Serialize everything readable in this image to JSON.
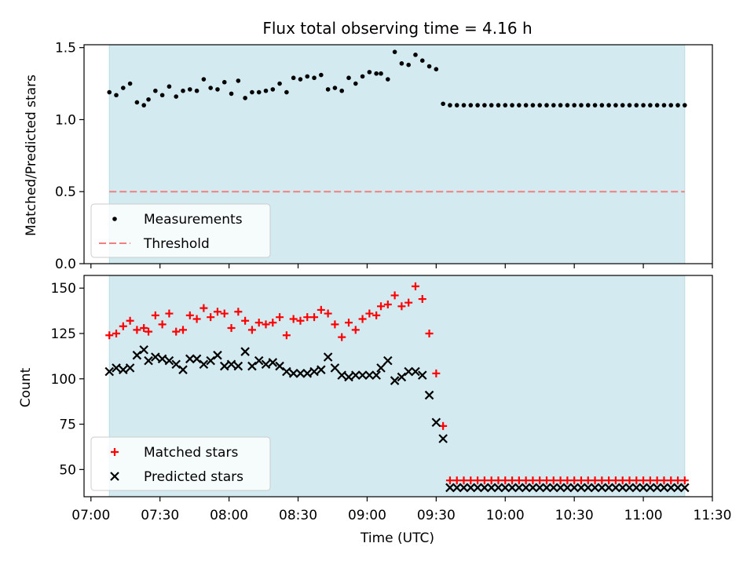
{
  "chart_data": [
    {
      "type": "scatter",
      "title": "Flux total observing time = 4.16 h",
      "xlabel": "",
      "ylabel": "Matched/Predicted stars",
      "xlim": [
        "06:57",
        "11:30"
      ],
      "ylim": [
        0,
        1.52
      ],
      "yticks": [
        0.0,
        0.5,
        1.0,
        1.5
      ],
      "ytick_labels": [
        "0.0",
        "0.5",
        "1.0",
        "1.5"
      ],
      "shaded_span": [
        "07:08",
        "11:18"
      ],
      "shade_color": "#d3eaf0",
      "threshold": {
        "name": "Threshold",
        "value": 0.5,
        "x": [
          "07:08",
          "11:18"
        ],
        "color": "#f08080"
      },
      "legend": {
        "position": "lower-left",
        "entries": [
          "Measurements",
          "Threshold"
        ]
      },
      "series": [
        {
          "name": "Measurements",
          "color": "#000000",
          "marker": "dot",
          "x": [
            "07:08",
            "07:11",
            "07:14",
            "07:17",
            "07:20",
            "07:23",
            "07:25",
            "07:28",
            "07:31",
            "07:34",
            "07:37",
            "07:40",
            "07:43",
            "07:46",
            "07:49",
            "07:52",
            "07:55",
            "07:58",
            "08:01",
            "08:04",
            "08:07",
            "08:10",
            "08:13",
            "08:16",
            "08:19",
            "08:22",
            "08:25",
            "08:28",
            "08:31",
            "08:34",
            "08:37",
            "08:40",
            "08:43",
            "08:46",
            "08:49",
            "08:52",
            "08:55",
            "08:58",
            "09:01",
            "09:04",
            "09:06",
            "09:09",
            "09:12",
            "09:15",
            "09:18",
            "09:21",
            "09:24",
            "09:27",
            "09:30",
            "09:33",
            "09:36",
            "09:39",
            "09:42",
            "09:45",
            "09:48",
            "09:51",
            "09:54",
            "09:57",
            "10:00",
            "10:03",
            "10:06",
            "10:09",
            "10:12",
            "10:15",
            "10:18",
            "10:21",
            "10:24",
            "10:27",
            "10:30",
            "10:33",
            "10:36",
            "10:39",
            "10:42",
            "10:45",
            "10:48",
            "10:51",
            "10:54",
            "10:57",
            "11:00",
            "11:03",
            "11:06",
            "11:09",
            "11:12",
            "11:15",
            "11:18"
          ],
          "y": [
            1.19,
            1.17,
            1.22,
            1.25,
            1.12,
            1.1,
            1.14,
            1.2,
            1.17,
            1.23,
            1.16,
            1.2,
            1.21,
            1.2,
            1.28,
            1.22,
            1.21,
            1.26,
            1.18,
            1.27,
            1.15,
            1.19,
            1.19,
            1.2,
            1.21,
            1.25,
            1.19,
            1.29,
            1.28,
            1.3,
            1.29,
            1.31,
            1.21,
            1.22,
            1.2,
            1.29,
            1.25,
            1.3,
            1.33,
            1.32,
            1.32,
            1.28,
            1.47,
            1.39,
            1.38,
            1.45,
            1.41,
            1.37,
            1.35,
            1.11,
            1.1,
            1.1,
            1.1,
            1.1,
            1.1,
            1.1,
            1.1,
            1.1,
            1.1,
            1.1,
            1.1,
            1.1,
            1.1,
            1.1,
            1.1,
            1.1,
            1.1,
            1.1,
            1.1,
            1.1,
            1.1,
            1.1,
            1.1,
            1.1,
            1.1,
            1.1,
            1.1,
            1.1,
            1.1,
            1.1,
            1.1,
            1.1,
            1.1,
            1.1,
            1.1
          ]
        }
      ]
    },
    {
      "type": "scatter",
      "title": "",
      "xlabel": "Time (UTC)",
      "ylabel": "Count",
      "xlim": [
        "06:57",
        "11:30"
      ],
      "ylim": [
        35,
        157
      ],
      "yticks": [
        50,
        75,
        100,
        125,
        150
      ],
      "ytick_labels": [
        "50",
        "75",
        "100",
        "125",
        "150"
      ],
      "xticks": [
        "07:00",
        "07:30",
        "08:00",
        "08:30",
        "09:00",
        "09:30",
        "10:00",
        "10:30",
        "11:00",
        "11:30"
      ],
      "xtick_labels": [
        "07:00",
        "07:30",
        "08:00",
        "08:30",
        "09:00",
        "09:30",
        "10:00",
        "10:30",
        "11:00",
        "11:30"
      ],
      "shaded_span": [
        "07:08",
        "11:18"
      ],
      "shade_color": "#d3eaf0",
      "legend": {
        "position": "lower-left",
        "entries": [
          "Matched stars",
          "Predicted stars"
        ]
      },
      "series": [
        {
          "name": "Matched stars",
          "color": "#ff0000",
          "marker": "plus",
          "x": [
            "07:08",
            "07:11",
            "07:14",
            "07:17",
            "07:20",
            "07:23",
            "07:25",
            "07:28",
            "07:31",
            "07:34",
            "07:37",
            "07:40",
            "07:43",
            "07:46",
            "07:49",
            "07:52",
            "07:55",
            "07:58",
            "08:01",
            "08:04",
            "08:07",
            "08:10",
            "08:13",
            "08:16",
            "08:19",
            "08:22",
            "08:25",
            "08:28",
            "08:31",
            "08:34",
            "08:37",
            "08:40",
            "08:43",
            "08:46",
            "08:49",
            "08:52",
            "08:55",
            "08:58",
            "09:01",
            "09:04",
            "09:06",
            "09:09",
            "09:12",
            "09:15",
            "09:18",
            "09:21",
            "09:24",
            "09:27",
            "09:30",
            "09:33",
            "09:36",
            "09:39",
            "09:42",
            "09:45",
            "09:48",
            "09:51",
            "09:54",
            "09:57",
            "10:00",
            "10:03",
            "10:06",
            "10:09",
            "10:12",
            "10:15",
            "10:18",
            "10:21",
            "10:24",
            "10:27",
            "10:30",
            "10:33",
            "10:36",
            "10:39",
            "10:42",
            "10:45",
            "10:48",
            "10:51",
            "10:54",
            "10:57",
            "11:00",
            "11:03",
            "11:06",
            "11:09",
            "11:12",
            "11:15",
            "11:18"
          ],
          "y": [
            124,
            125,
            129,
            132,
            127,
            128,
            126,
            135,
            130,
            136,
            126,
            127,
            135,
            133,
            139,
            134,
            137,
            136,
            128,
            137,
            132,
            127,
            131,
            130,
            131,
            134,
            124,
            133,
            132,
            134,
            134,
            138,
            136,
            130,
            123,
            131,
            127,
            133,
            136,
            135,
            140,
            141,
            146,
            140,
            142,
            151,
            144,
            125,
            103,
            74,
            44,
            44,
            44,
            44,
            44,
            44,
            44,
            44,
            44,
            44,
            44,
            44,
            44,
            44,
            44,
            44,
            44,
            44,
            44,
            44,
            44,
            44,
            44,
            44,
            44,
            44,
            44,
            44,
            44,
            44,
            44,
            44,
            44,
            44,
            44
          ]
        },
        {
          "name": "Predicted stars",
          "color": "#000000",
          "marker": "x",
          "x": [
            "07:08",
            "07:11",
            "07:14",
            "07:17",
            "07:20",
            "07:23",
            "07:25",
            "07:28",
            "07:31",
            "07:34",
            "07:37",
            "07:40",
            "07:43",
            "07:46",
            "07:49",
            "07:52",
            "07:55",
            "07:58",
            "08:01",
            "08:04",
            "08:07",
            "08:10",
            "08:13",
            "08:16",
            "08:19",
            "08:22",
            "08:25",
            "08:28",
            "08:31",
            "08:34",
            "08:37",
            "08:40",
            "08:43",
            "08:46",
            "08:49",
            "08:52",
            "08:55",
            "08:58",
            "09:01",
            "09:04",
            "09:06",
            "09:09",
            "09:12",
            "09:15",
            "09:18",
            "09:21",
            "09:24",
            "09:27",
            "09:30",
            "09:33",
            "09:36",
            "09:39",
            "09:42",
            "09:45",
            "09:48",
            "09:51",
            "09:54",
            "09:57",
            "10:00",
            "10:03",
            "10:06",
            "10:09",
            "10:12",
            "10:15",
            "10:18",
            "10:21",
            "10:24",
            "10:27",
            "10:30",
            "10:33",
            "10:36",
            "10:39",
            "10:42",
            "10:45",
            "10:48",
            "10:51",
            "10:54",
            "10:57",
            "11:00",
            "11:03",
            "11:06",
            "11:09",
            "11:12",
            "11:15",
            "11:18"
          ],
          "y": [
            104,
            106,
            105,
            106,
            113,
            116,
            110,
            112,
            111,
            110,
            108,
            105,
            111,
            111,
            108,
            110,
            113,
            107,
            108,
            107,
            115,
            107,
            110,
            108,
            109,
            107,
            104,
            103,
            103,
            103,
            104,
            105,
            112,
            106,
            102,
            101,
            102,
            102,
            102,
            102,
            106,
            110,
            99,
            101,
            104,
            104,
            102,
            91,
            76,
            67,
            40,
            40,
            40,
            40,
            40,
            40,
            40,
            40,
            40,
            40,
            40,
            40,
            40,
            40,
            40,
            40,
            40,
            40,
            40,
            40,
            40,
            40,
            40,
            40,
            40,
            40,
            40,
            40,
            40,
            40,
            40,
            40,
            40,
            40,
            40
          ]
        }
      ]
    }
  ]
}
